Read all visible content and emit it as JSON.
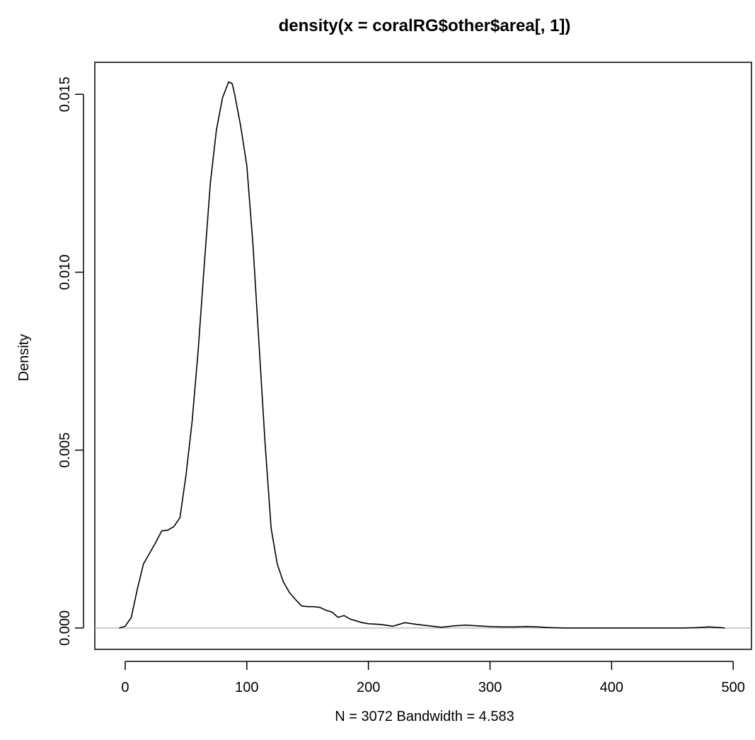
{
  "chart_data": {
    "type": "line",
    "title": "density(x = coralRG$other$area[, 1])",
    "xlabel": "N = 3072   Bandwidth = 4.583",
    "ylabel": "Density",
    "xlim": [
      -25,
      515
    ],
    "ylim": [
      -0.0006,
      0.0159
    ],
    "x_ticks": [
      0,
      100,
      200,
      300,
      400,
      500
    ],
    "x_tick_labels": [
      "0",
      "100",
      "200",
      "300",
      "400",
      "500"
    ],
    "y_ticks": [
      0.0,
      0.005,
      0.01,
      0.015
    ],
    "y_tick_labels": [
      "0.000",
      "0.005",
      "0.010",
      "0.015"
    ],
    "baseline": 0,
    "grid": false,
    "legend": "none",
    "series": [
      {
        "x": [
          -5,
          0,
          5,
          10,
          15,
          20,
          25,
          30,
          35,
          40,
          45,
          50,
          55,
          60,
          65,
          70,
          75,
          80,
          85,
          88,
          90,
          95,
          100,
          105,
          110,
          115,
          120,
          125,
          130,
          135,
          140,
          145,
          150,
          155,
          160,
          165,
          170,
          175,
          180,
          185,
          190,
          195,
          200,
          210,
          220,
          230,
          240,
          250,
          260,
          270,
          280,
          290,
          300,
          310,
          320,
          330,
          340,
          350,
          360,
          380,
          400,
          420,
          440,
          460,
          470,
          480,
          490,
          493
        ],
        "y": [
          0.0,
          5e-05,
          0.0003,
          0.0011,
          0.0018,
          0.0021,
          0.0024,
          0.00273,
          0.00275,
          0.00285,
          0.0031,
          0.0043,
          0.0058,
          0.0078,
          0.0102,
          0.0125,
          0.014,
          0.0149,
          0.01535,
          0.0153,
          0.015,
          0.0141,
          0.013,
          0.0108,
          0.008,
          0.0052,
          0.0028,
          0.0018,
          0.0013,
          0.001,
          0.0008,
          0.00062,
          0.0006,
          0.0006,
          0.00058,
          0.0005,
          0.00045,
          0.0003,
          0.00035,
          0.00025,
          0.0002,
          0.00015,
          0.00012,
          0.0001,
          5e-05,
          0.00015,
          0.0001,
          6e-05,
          2e-05,
          6e-05,
          8e-05,
          6e-05,
          4e-05,
          3e-05,
          3e-05,
          4e-05,
          3e-05,
          1e-05,
          0.0,
          0.0,
          0.0,
          0.0,
          0.0,
          0.0,
          1e-05,
          3e-05,
          1e-05,
          0.0
        ]
      }
    ]
  }
}
